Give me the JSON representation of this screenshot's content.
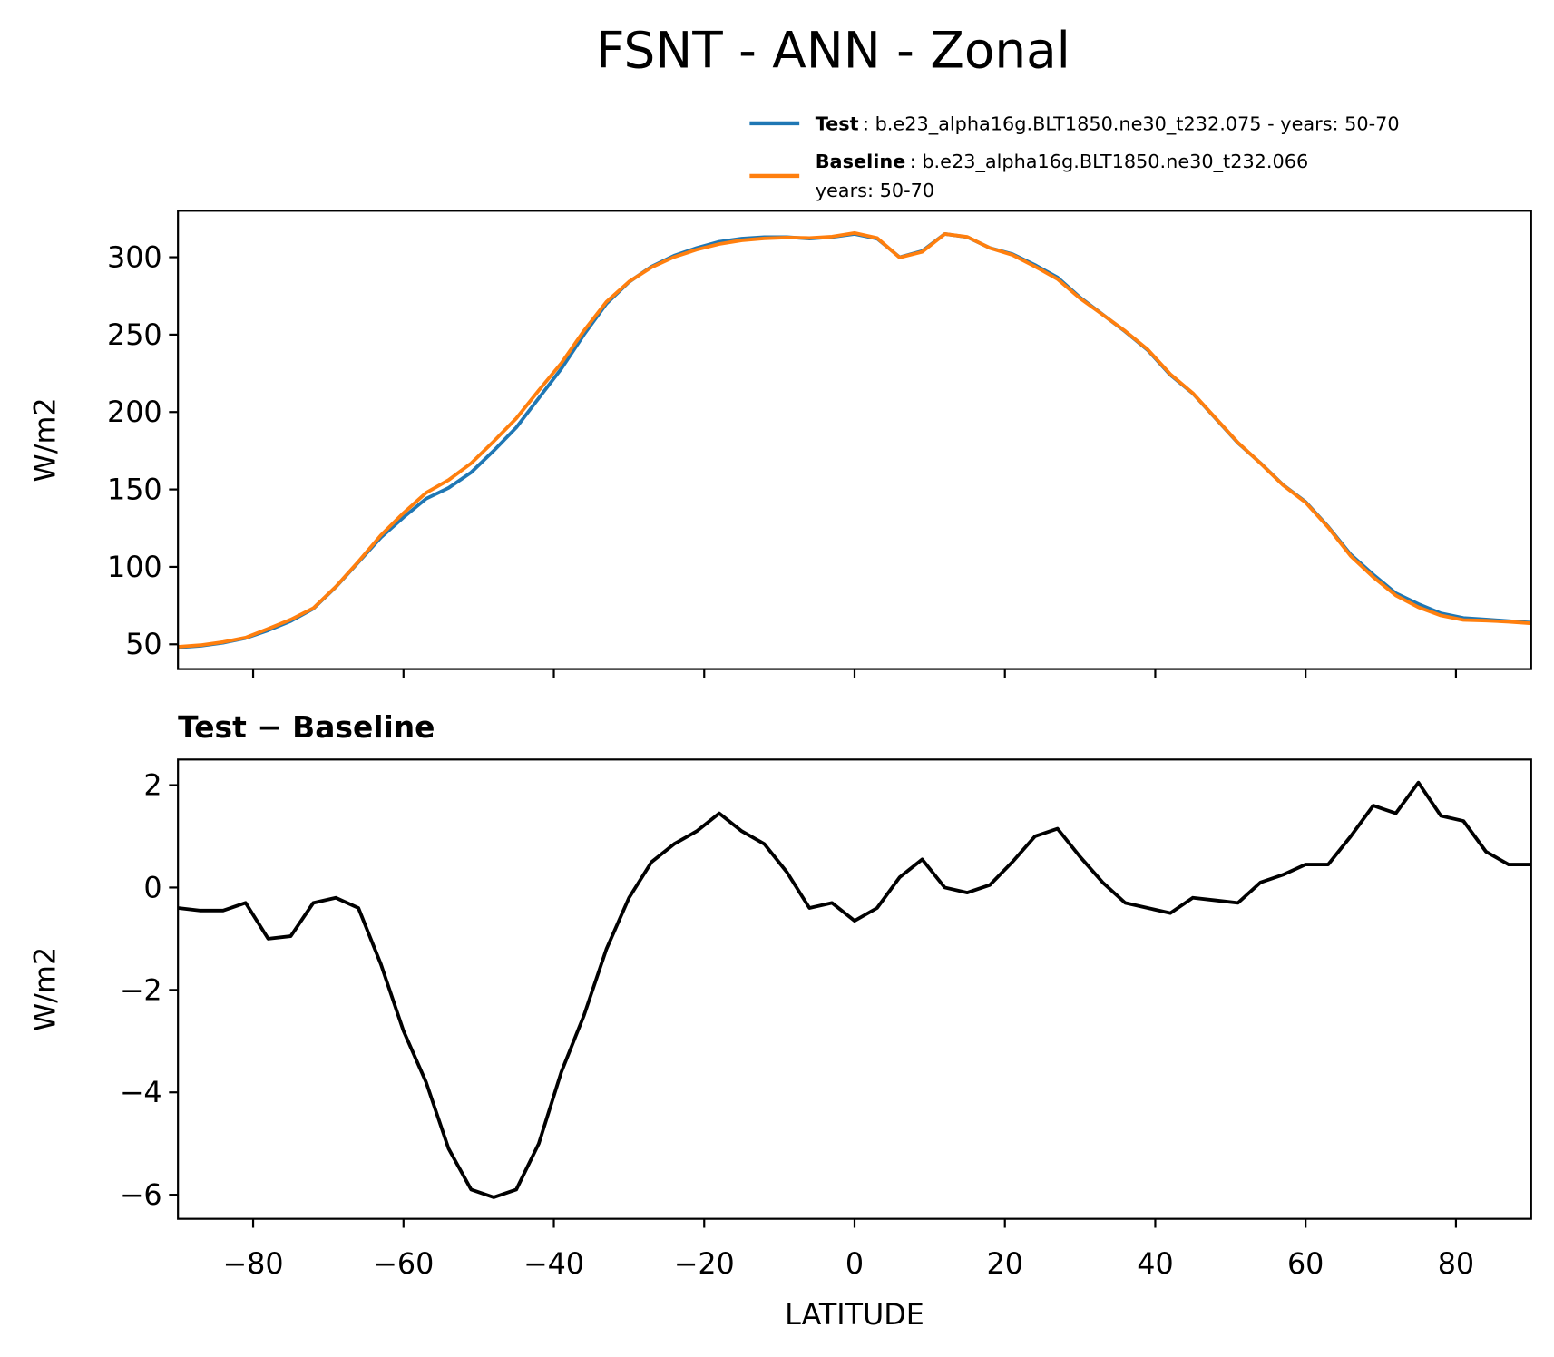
{
  "title": "FSNT - ANN - Zonal",
  "chart_data": [
    {
      "type": "line",
      "ylabel": "W/m2",
      "x": [
        -90,
        -87,
        -84,
        -81,
        -78,
        -75,
        -72,
        -69,
        -66,
        -63,
        -60,
        -57,
        -54,
        -51,
        -48,
        -45,
        -42,
        -39,
        -36,
        -33,
        -30,
        -27,
        -24,
        -21,
        -18,
        -15,
        -12,
        -9,
        -6,
        -3,
        0,
        3,
        6,
        9,
        12,
        15,
        18,
        21,
        24,
        27,
        30,
        33,
        36,
        39,
        42,
        45,
        48,
        51,
        54,
        57,
        60,
        63,
        66,
        69,
        72,
        75,
        78,
        81,
        84,
        87,
        90
      ],
      "series": [
        {
          "name": "Test",
          "description": [
            ": b.e23_alpha16g.BLT1850.ne30_t232.075 - years: 50-70"
          ],
          "color": "#1f77b4",
          "values": [
            48,
            49,
            51,
            54,
            59,
            65,
            73,
            87,
            103,
            119,
            132,
            144,
            151,
            161,
            175,
            190,
            209,
            228,
            250,
            270,
            284,
            294,
            301,
            306,
            310,
            312,
            313,
            313,
            312,
            313,
            315,
            312,
            300,
            304,
            315,
            313,
            306,
            302,
            295,
            287,
            274,
            263,
            252,
            240,
            224,
            212,
            196,
            180,
            167,
            153,
            142,
            126,
            108,
            95,
            83,
            76,
            70,
            67,
            66,
            65,
            64
          ]
        },
        {
          "name": "Baseline",
          "description": [
            ": b.e23_alpha16g.BLT1850.ne30_t232.066",
            "years: 50-70"
          ],
          "color": "#ff7f0e",
          "values": [
            48.4,
            49.45,
            51.45,
            54.3,
            60,
            65.95,
            73.3,
            87.2,
            103.4,
            120.5,
            134.8,
            147.8,
            156.1,
            166.9,
            181.05,
            195.9,
            214,
            231.6,
            252.5,
            271.2,
            284.2,
            293.5,
            300.15,
            304.9,
            308.55,
            310.9,
            312.15,
            312.7,
            312.4,
            313.3,
            315.65,
            312.4,
            299.8,
            303.45,
            315,
            313.1,
            305.95,
            301.5,
            294,
            285.85,
            273.4,
            262.9,
            252.3,
            240.4,
            224.5,
            212.2,
            196.25,
            180.3,
            166.9,
            152.75,
            141.55,
            125.55,
            107,
            93.4,
            81.55,
            73.95,
            68.6,
            65.7,
            65.3,
            64.55,
            63.55
          ]
        }
      ],
      "xlim": [
        -90,
        90
      ],
      "ylim": [
        34,
        330
      ],
      "yticks": [
        50,
        100,
        150,
        200,
        250,
        300
      ],
      "legend": "upper right"
    },
    {
      "type": "line",
      "title": "Test − Baseline",
      "xlabel": "LATITUDE",
      "ylabel": "W/m2",
      "x": [
        -90,
        -87,
        -84,
        -81,
        -78,
        -75,
        -72,
        -69,
        -66,
        -63,
        -60,
        -57,
        -54,
        -51,
        -48,
        -45,
        -42,
        -39,
        -36,
        -33,
        -30,
        -27,
        -24,
        -21,
        -18,
        -15,
        -12,
        -9,
        -6,
        -3,
        0,
        3,
        6,
        9,
        12,
        15,
        18,
        21,
        24,
        27,
        30,
        33,
        36,
        39,
        42,
        45,
        48,
        51,
        54,
        57,
        60,
        63,
        66,
        69,
        72,
        75,
        78,
        81,
        84,
        87,
        90
      ],
      "series": [
        {
          "color": "#000000",
          "values": [
            -0.4,
            -0.45,
            -0.45,
            -0.3,
            -1.0,
            -0.95,
            -0.3,
            -0.2,
            -0.4,
            -1.5,
            -2.8,
            -3.8,
            -5.1,
            -5.9,
            -6.05,
            -5.9,
            -5.0,
            -3.6,
            -2.5,
            -1.2,
            -0.2,
            0.5,
            0.85,
            1.1,
            1.45,
            1.1,
            0.85,
            0.3,
            -0.4,
            -0.3,
            -0.65,
            -0.4,
            0.2,
            0.55,
            0.0,
            -0.1,
            0.05,
            0.5,
            1.0,
            1.15,
            0.6,
            0.1,
            -0.3,
            -0.4,
            -0.5,
            -0.2,
            -0.25,
            -0.3,
            0.1,
            0.25,
            0.45,
            0.45,
            1.0,
            1.6,
            1.45,
            2.05,
            1.4,
            1.3,
            0.7,
            0.45,
            0.45
          ]
        }
      ],
      "xlim": [
        -90,
        90
      ],
      "ylim": [
        -6.47,
        2.5
      ],
      "xticks": [
        {
          "value": -80,
          "label": "−80"
        },
        {
          "value": -60,
          "label": "−60"
        },
        {
          "value": -40,
          "label": "−40"
        },
        {
          "value": -20,
          "label": "−20"
        },
        0,
        20,
        40,
        60,
        80
      ],
      "yticks": [
        {
          "value": -6,
          "label": "−6"
        },
        {
          "value": -4,
          "label": "−4"
        },
        {
          "value": -2,
          "label": "−2"
        },
        0,
        2
      ]
    }
  ]
}
